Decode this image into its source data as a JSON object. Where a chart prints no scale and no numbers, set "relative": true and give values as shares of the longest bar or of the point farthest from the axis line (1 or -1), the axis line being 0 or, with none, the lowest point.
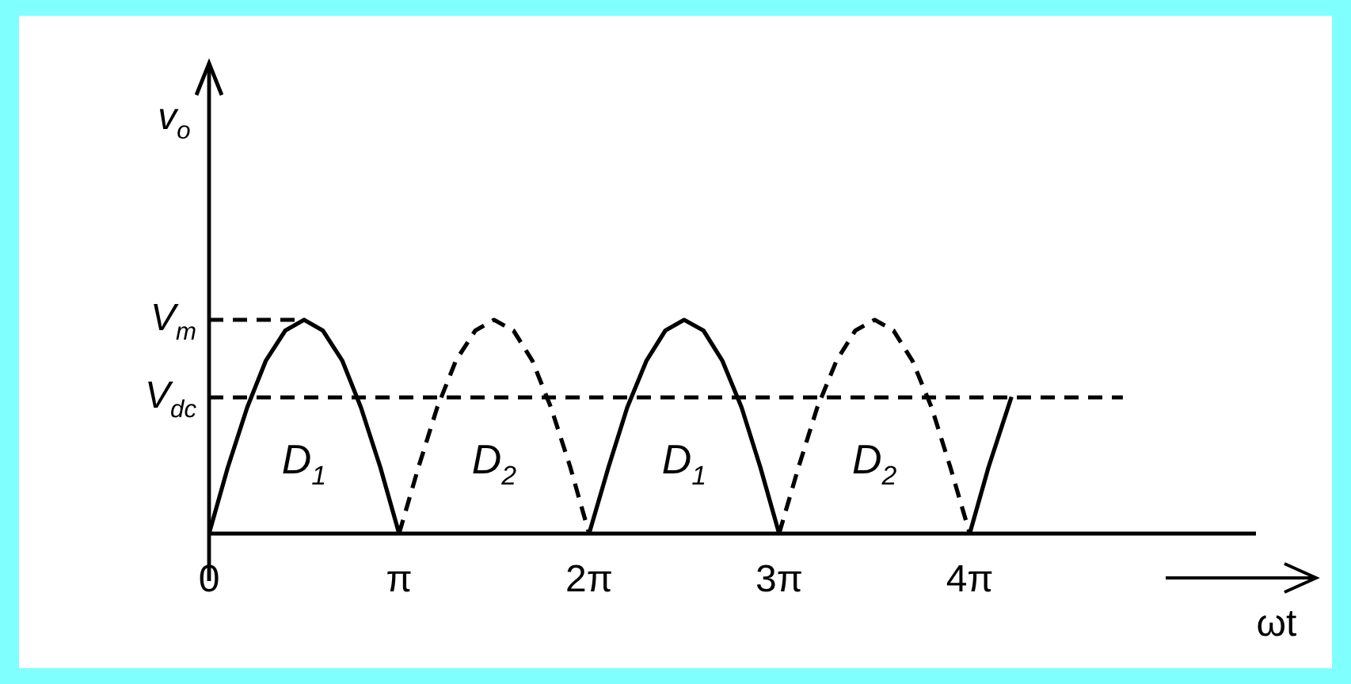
{
  "chart_data": {
    "type": "line",
    "xlabel": "ωt",
    "ylabel": "v$_{o}$",
    "xlim": [
      0,
      17.3
    ],
    "relative": true,
    "xticks": [
      0,
      {
        "value": 3.14,
        "label": "π"
      },
      {
        "value": 6.28,
        "label": "2π"
      },
      {
        "value": 9.42,
        "label": "3π"
      },
      {
        "value": 12.57,
        "label": "4π"
      }
    ],
    "grid": false,
    "legend": false,
    "marker": "none",
    "series": [
      {
        "color": "#000000",
        "line_style": "solid",
        "x": [
          0,
          0.31,
          0.63,
          0.94,
          1.26,
          1.57,
          1.88,
          2.2,
          2.51,
          2.83,
          3.14,
          4.71,
          6.28,
          6.6,
          6.91,
          7.23,
          7.54,
          7.85,
          8.17,
          8.48,
          8.8,
          9.11,
          9.42,
          11,
          12.57,
          12.88,
          13.26
        ],
        "values": [
          0,
          0.31,
          0.59,
          0.81,
          0.95,
          1,
          0.95,
          0.81,
          0.59,
          0.31,
          0,
          null,
          0,
          0.31,
          0.59,
          0.81,
          0.95,
          1,
          0.95,
          0.81,
          0.59,
          0.31,
          0,
          null,
          0,
          0.31,
          0.64
        ]
      },
      {
        "color": "#000000",
        "line_style": "dashed",
        "x": [
          3.14,
          3.46,
          3.77,
          4.08,
          4.4,
          4.71,
          5.03,
          5.34,
          5.65,
          5.97,
          6.28,
          7.85,
          9.42,
          9.74,
          10.05,
          10.37,
          10.68,
          11,
          11.31,
          11.62,
          11.94,
          12.25,
          12.57
        ],
        "values": [
          0,
          0.31,
          0.59,
          0.81,
          0.95,
          1,
          0.95,
          0.81,
          0.59,
          0.31,
          0,
          null,
          0,
          0.31,
          0.59,
          0.81,
          0.95,
          1,
          0.95,
          0.81,
          0.59,
          0.31,
          0
        ]
      },
      {
        "color": "#000000",
        "line_style": "dashed",
        "x": [
          0,
          1.57
        ],
        "values": [
          1,
          1
        ]
      },
      {
        "color": "#000000",
        "line_style": "dashed",
        "x": [
          0,
          15.1
        ],
        "values": [
          0.637,
          0.637
        ]
      }
    ],
    "annotations": [
      {
        "text": "V$_{m}$",
        "x": 0,
        "y": 1
      },
      {
        "text": "V$_{dc}$",
        "x": 0,
        "y": 0.637
      },
      "D$_{1}$",
      "D$_{2}$",
      "D$_{1}$",
      "D$_{2}$"
    ]
  }
}
